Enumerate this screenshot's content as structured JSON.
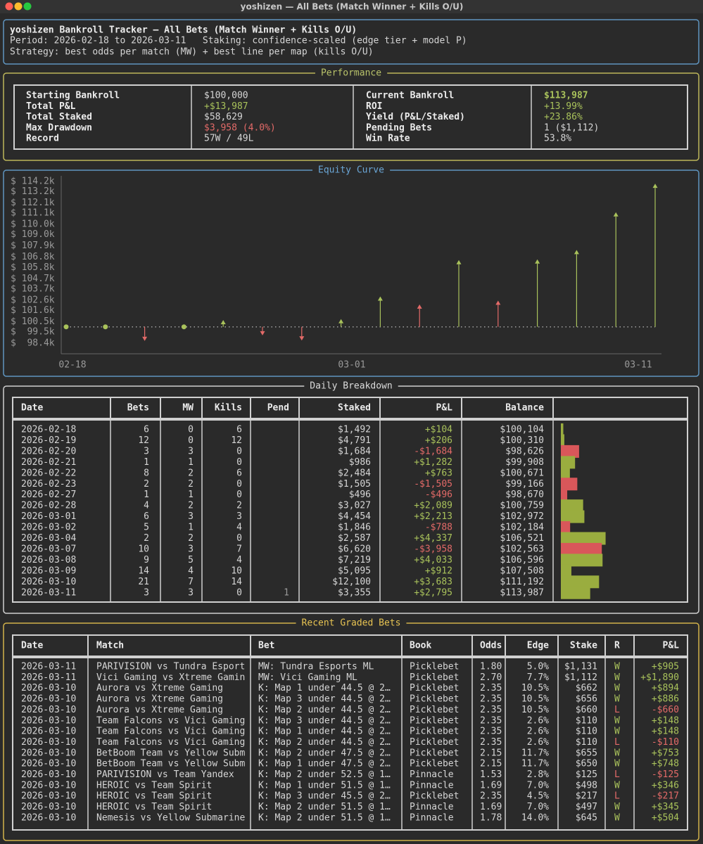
{
  "window_title": "yoshizen — All Bets (Match Winner + Kills O/U)",
  "header": {
    "title": "yoshizen Bankroll Tracker — All Bets (Match Winner + Kills O/U)",
    "period": "Period: 2026-02-18 to 2026-03-11   Staking: confidence-scaled (edge tier + model P)",
    "strategy": "Strategy: best odds per match (MW) + best line per map (kills O/U)"
  },
  "performance": {
    "title": "Performance",
    "rows": [
      [
        "Starting Bankroll",
        "$100,000",
        "Current Bankroll",
        "$113,987"
      ],
      [
        "Total P&L",
        "+$13,987",
        "ROI",
        "+13.99%"
      ],
      [
        "Total Staked",
        "$58,629",
        "Yield (P&L/Staked)",
        "+23.86%"
      ],
      [
        "Max Drawdown",
        "$3,958 (4.0%)",
        "Pending Bets",
        "1 ($1,112)"
      ],
      [
        "Record",
        "57W / 49L",
        "Win Rate",
        "53.8%"
      ]
    ]
  },
  "equity_curve": {
    "title": "Equity Curve",
    "ylim": [
      98400,
      114200
    ],
    "yticks": [
      {
        "value": 114200,
        "label": "$ 114.2k"
      },
      {
        "value": 113200,
        "label": "$ 113.2k"
      },
      {
        "value": 112100,
        "label": "$ 112.1k"
      },
      {
        "value": 111100,
        "label": "$ 111.1k"
      },
      {
        "value": 110000,
        "label": "$ 110.0k"
      },
      {
        "value": 109000,
        "label": "$ 109.0k"
      },
      {
        "value": 107900,
        "label": "$ 107.9k"
      },
      {
        "value": 106800,
        "label": "$ 106.8k"
      },
      {
        "value": 105800,
        "label": "$ 105.8k"
      },
      {
        "value": 104700,
        "label": "$ 104.7k"
      },
      {
        "value": 103700,
        "label": "$ 103.7k"
      },
      {
        "value": 102600,
        "label": "$ 102.6k"
      },
      {
        "value": 101600,
        "label": "$ 101.6k"
      },
      {
        "value": 100500,
        "label": "$ 100.5k"
      },
      {
        "value": 99500,
        "label": "$  99.5k"
      },
      {
        "value": 98400,
        "label": "$  98.4k"
      }
    ],
    "xticks": [
      "02-18",
      "03-01",
      "03-11"
    ],
    "baseline": 100000,
    "values": [
      100104,
      100310,
      98626,
      99908,
      100671,
      99166,
      98670,
      100759,
      102972,
      102184,
      106521,
      102563,
      106596,
      107508,
      111192,
      113987
    ]
  },
  "daily": {
    "title": "Daily Breakdown",
    "columns": [
      "Date",
      "Bets",
      "MW",
      "Kills",
      "Pend",
      "Staked",
      "P&L",
      "Balance"
    ],
    "rows": [
      [
        "2026-02-18",
        "6",
        "0",
        "6",
        null,
        "$1,492",
        "+$104",
        "$100,104"
      ],
      [
        "2026-02-19",
        "12",
        "0",
        "12",
        null,
        "$4,791",
        "+$206",
        "$100,310"
      ],
      [
        "2026-02-20",
        "3",
        "3",
        "0",
        null,
        "$1,684",
        "-$1,684",
        "$98,626"
      ],
      [
        "2026-02-21",
        "1",
        "1",
        "0",
        null,
        "$986",
        "+$1,282",
        "$99,908"
      ],
      [
        "2026-02-22",
        "8",
        "2",
        "6",
        null,
        "$2,484",
        "+$763",
        "$100,671"
      ],
      [
        "2026-02-23",
        "2",
        "2",
        "0",
        null,
        "$1,505",
        "-$1,505",
        "$99,166"
      ],
      [
        "2026-02-27",
        "1",
        "1",
        "0",
        null,
        "$496",
        "-$496",
        "$98,670"
      ],
      [
        "2026-02-28",
        "4",
        "2",
        "2",
        null,
        "$3,027",
        "+$2,089",
        "$100,759"
      ],
      [
        "2026-03-01",
        "6",
        "3",
        "3",
        null,
        "$4,454",
        "+$2,213",
        "$102,972"
      ],
      [
        "2026-03-02",
        "5",
        "1",
        "4",
        null,
        "$1,846",
        "-$788",
        "$102,184"
      ],
      [
        "2026-03-04",
        "2",
        "2",
        "0",
        null,
        "$2,587",
        "+$4,337",
        "$106,521"
      ],
      [
        "2026-03-07",
        "10",
        "3",
        "7",
        null,
        "$6,620",
        "-$3,958",
        "$102,563"
      ],
      [
        "2026-03-08",
        "9",
        "5",
        "4",
        null,
        "$7,219",
        "+$4,033",
        "$106,596"
      ],
      [
        "2026-03-09",
        "14",
        "4",
        "10",
        null,
        "$5,095",
        "+$912",
        "$107,508"
      ],
      [
        "2026-03-10",
        "21",
        "7",
        "14",
        null,
        "$12,100",
        "+$3,683",
        "$111,192"
      ],
      [
        "2026-03-11",
        "3",
        "3",
        "0",
        "1",
        "$3,355",
        "+$2,795",
        "$113,987"
      ]
    ],
    "pnl_values": [
      104,
      206,
      -1684,
      1282,
      763,
      -1505,
      -496,
      2089,
      2213,
      -788,
      4337,
      -3958,
      4033,
      912,
      3683,
      2795
    ]
  },
  "recent": {
    "title": "Recent Graded Bets",
    "columns": [
      "Date",
      "Match",
      "Bet",
      "Book",
      "Odds",
      "Edge",
      "Stake",
      "R",
      "P&L"
    ],
    "rows": [
      [
        "2026-03-11",
        "PARIVISION vs Tundra Esport",
        "MW: Tundra Esports ML",
        "Picklebet",
        "1.80",
        "5.0%",
        "$1,131",
        "W",
        "+$905"
      ],
      [
        "2026-03-11",
        "Vici Gaming vs Xtreme Gamin",
        "MW: Vici Gaming ML",
        "Picklebet",
        "2.70",
        "7.7%",
        "$1,112",
        "W",
        "+$1,890"
      ],
      [
        "2026-03-10",
        "Aurora vs Xtreme Gaming",
        "K: Map 1 under 44.5 @ 2…",
        "Picklebet",
        "2.35",
        "10.5%",
        "$662",
        "W",
        "+$894"
      ],
      [
        "2026-03-10",
        "Aurora vs Xtreme Gaming",
        "K: Map 3 under 44.5 @ 2…",
        "Picklebet",
        "2.35",
        "10.5%",
        "$656",
        "W",
        "+$886"
      ],
      [
        "2026-03-10",
        "Aurora vs Xtreme Gaming",
        "K: Map 2 under 44.5 @ 2…",
        "Picklebet",
        "2.35",
        "10.5%",
        "$660",
        "L",
        "-$660"
      ],
      [
        "2026-03-10",
        "Team Falcons vs Vici Gaming",
        "K: Map 3 under 44.5 @ 2…",
        "Picklebet",
        "2.35",
        "2.6%",
        "$110",
        "W",
        "+$148"
      ],
      [
        "2026-03-10",
        "Team Falcons vs Vici Gaming",
        "K: Map 1 under 44.5 @ 2…",
        "Picklebet",
        "2.35",
        "2.6%",
        "$110",
        "W",
        "+$148"
      ],
      [
        "2026-03-10",
        "Team Falcons vs Vici Gaming",
        "K: Map 2 under 44.5 @ 2…",
        "Picklebet",
        "2.35",
        "2.6%",
        "$110",
        "L",
        "-$110"
      ],
      [
        "2026-03-10",
        "BetBoom Team vs Yellow Subm",
        "K: Map 2 under 47.5 @ 2…",
        "Picklebet",
        "2.15",
        "11.7%",
        "$655",
        "W",
        "+$753"
      ],
      [
        "2026-03-10",
        "BetBoom Team vs Yellow Subm",
        "K: Map 1 under 47.5 @ 2…",
        "Picklebet",
        "2.15",
        "11.7%",
        "$650",
        "W",
        "+$748"
      ],
      [
        "2026-03-10",
        "PARIVISION vs Team Yandex",
        "K: Map 2 under 52.5 @ 1…",
        "Pinnacle",
        "1.53",
        "2.8%",
        "$125",
        "L",
        "-$125"
      ],
      [
        "2026-03-10",
        "HEROIC vs Team Spirit",
        "K: Map 1 under 51.5 @ 1…",
        "Pinnacle",
        "1.69",
        "7.0%",
        "$498",
        "W",
        "+$346"
      ],
      [
        "2026-03-10",
        "HEROIC vs Team Spirit",
        "K: Map 3 under 45.5 @ 2…",
        "Picklebet",
        "2.35",
        "4.5%",
        "$217",
        "L",
        "-$217"
      ],
      [
        "2026-03-10",
        "HEROIC vs Team Spirit",
        "K: Map 2 under 51.5 @ 1…",
        "Pinnacle",
        "1.69",
        "7.0%",
        "$497",
        "W",
        "+$345"
      ],
      [
        "2026-03-10",
        "Nemesis vs Yellow Submarine",
        "K: Map 2 under 51.5 @ 1…",
        "Pinnacle",
        "1.78",
        "14.0%",
        "$645",
        "W",
        "+$504"
      ]
    ]
  }
}
